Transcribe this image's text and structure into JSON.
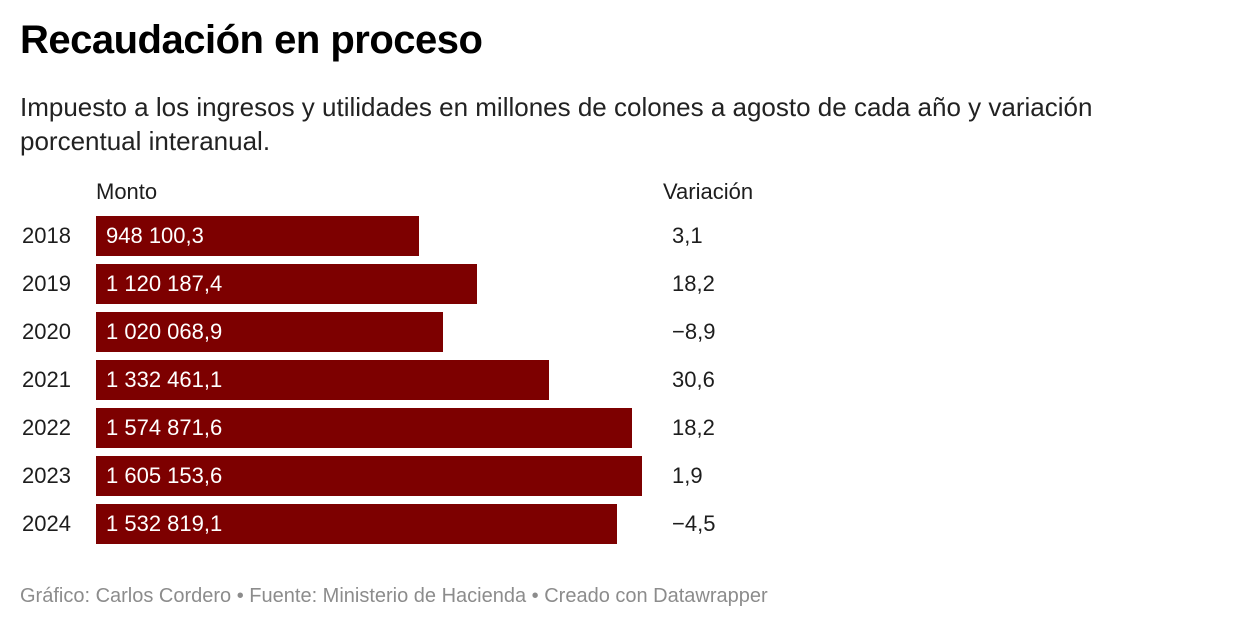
{
  "title": "Recaudación en proceso",
  "subtitle": "Impuesto a los ingresos y utilidades en millones de colones a agosto de cada año y variación porcentual interanual.",
  "columns": {
    "amount": "Monto",
    "change": "Variación"
  },
  "footer": "Gráfico: Carlos Cordero • Fuente: Ministerio de Hacienda • Creado con Datawrapper",
  "colors": {
    "bar": "#7d0000"
  },
  "chart_data": {
    "type": "bar",
    "orientation": "horizontal",
    "categories": [
      "2018",
      "2019",
      "2020",
      "2021",
      "2022",
      "2023",
      "2024"
    ],
    "values": [
      948100.3,
      1120187.4,
      1020068.9,
      1332461.1,
      1574871.6,
      1605153.6,
      1532819.1
    ],
    "value_labels": [
      "948 100,3",
      "1 120 187,4",
      "1 020 068,9",
      "1 332 461,1",
      "1 574 871,6",
      "1 605 153,6",
      "1 532 819,1"
    ],
    "variation": [
      3.1,
      18.2,
      -8.9,
      30.6,
      18.2,
      1.9,
      -4.5
    ],
    "variation_labels": [
      "3,1",
      "18,2",
      "−8,9",
      "30,6",
      "18,2",
      "1,9",
      "−4,5"
    ],
    "xlim": [
      0,
      1605153.6
    ]
  }
}
